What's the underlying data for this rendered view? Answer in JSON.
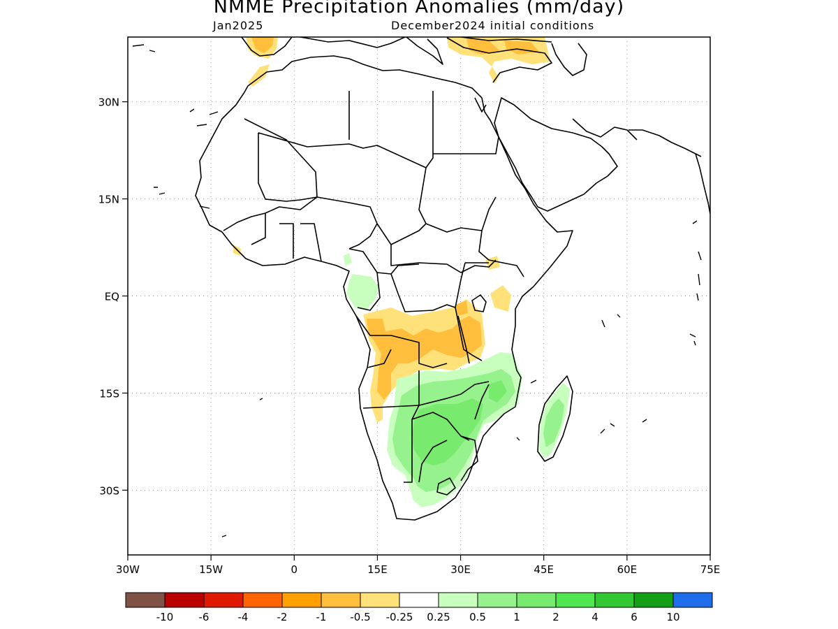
{
  "title": "NMME Precipitation Anomalies (mm/day)",
  "subtitle_left": "Jan2025",
  "subtitle_right": "December2024 initial conditions",
  "lat_labels": [
    {
      "lat": 30,
      "label": "30N"
    },
    {
      "lat": 15,
      "label": "15N"
    },
    {
      "lat": 0,
      "label": "EQ"
    },
    {
      "lat": -15,
      "label": "15S"
    },
    {
      "lat": -30,
      "label": "30S"
    }
  ],
  "lon_labels": [
    {
      "lon": -30,
      "label": "30W"
    },
    {
      "lon": -15,
      "label": "15W"
    },
    {
      "lon": 0,
      "label": "0"
    },
    {
      "lon": 15,
      "label": "15E"
    },
    {
      "lon": 30,
      "label": "30E"
    },
    {
      "lon": 45,
      "label": "45E"
    },
    {
      "lon": 60,
      "label": "60E"
    },
    {
      "lon": 75,
      "label": "75E"
    }
  ],
  "colorbar": {
    "colors": [
      "#7f5245",
      "#bb0000",
      "#e01a00",
      "#ff6400",
      "#ffa000",
      "#ffbe3c",
      "#ffe17a",
      "#ffffff",
      "#c8ffbe",
      "#96f28c",
      "#78eb6e",
      "#50e650",
      "#32c832",
      "#14a014",
      "#1e6eeb"
    ],
    "labels": [
      "-10",
      "-6",
      "-4",
      "-2",
      "-1",
      "-0.5",
      "-0.25",
      "0.25",
      "0.5",
      "1",
      "2",
      "4",
      "6",
      "10"
    ]
  },
  "anomaly_colors": {
    "dry_weak": "#ffe17a",
    "dry_moderate": "#ffbe3c",
    "wet_weak": "#c8ffbe",
    "wet_moderate": "#96f28c",
    "wet_strong": "#78eb6e"
  }
}
